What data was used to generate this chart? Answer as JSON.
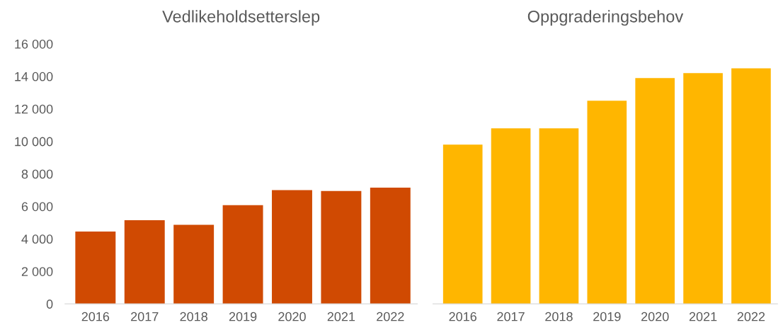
{
  "chart_data": [
    {
      "type": "bar",
      "title": "Vedlikeholdsetterslep",
      "categories": [
        "2016",
        "2017",
        "2018",
        "2019",
        "2020",
        "2021",
        "2022"
      ],
      "values": [
        4450,
        5150,
        4870,
        6080,
        7000,
        6950,
        7150
      ],
      "color": "#d04a02",
      "ylim": [
        0,
        16000
      ],
      "yticks": [
        {
          "value": 0,
          "label": "0"
        },
        {
          "value": 2000,
          "label": "2 000"
        },
        {
          "value": 4000,
          "label": "4 000"
        },
        {
          "value": 6000,
          "label": "6 000"
        },
        {
          "value": 8000,
          "label": "8 000"
        },
        {
          "value": 10000,
          "label": "10 000"
        },
        {
          "value": 12000,
          "label": "12 000"
        },
        {
          "value": 14000,
          "label": "14 000"
        },
        {
          "value": 16000,
          "label": "16 000"
        }
      ],
      "grid": false
    },
    {
      "type": "bar",
      "title": "Oppgraderingsbehov",
      "categories": [
        "2016",
        "2017",
        "2018",
        "2019",
        "2020",
        "2021",
        "2022"
      ],
      "values": [
        9800,
        10800,
        10800,
        12500,
        13900,
        14200,
        14500
      ],
      "color": "#ffb600",
      "ylim": [
        0,
        16000
      ],
      "tick_labels": "x",
      "grid": false
    }
  ]
}
